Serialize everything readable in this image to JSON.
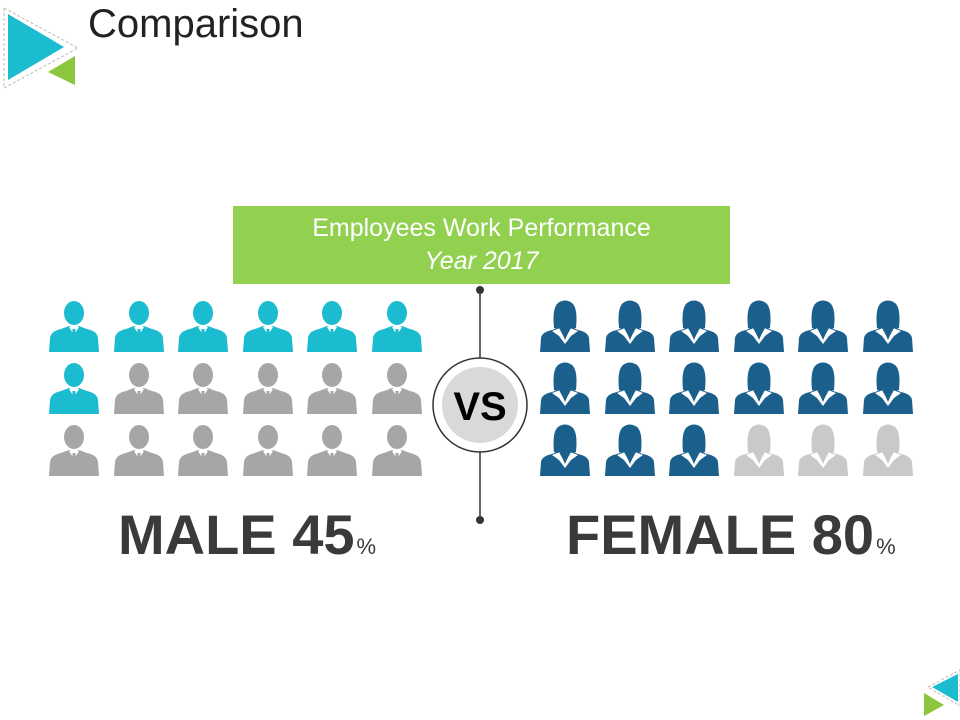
{
  "slide": {
    "title": "Comparison"
  },
  "banner": {
    "line1": "Employees Work Performance",
    "line2": "Year 2017"
  },
  "vs_label": "VS",
  "male": {
    "label": "MALE",
    "value": "45",
    "unit": "%",
    "icons_total": 18,
    "icons_highlighted": 7,
    "highlight_color": "#1bbccf",
    "base_color": "#a6a6a6"
  },
  "female": {
    "label": "FEMALE",
    "value": "80",
    "unit": "%",
    "icons_total": 18,
    "icons_highlighted": 15,
    "highlight_color": "#1b5f8c",
    "base_color": "#c9c9c9"
  },
  "colors": {
    "accent_green": "#92d050",
    "accent_cyan": "#1bbccf"
  }
}
